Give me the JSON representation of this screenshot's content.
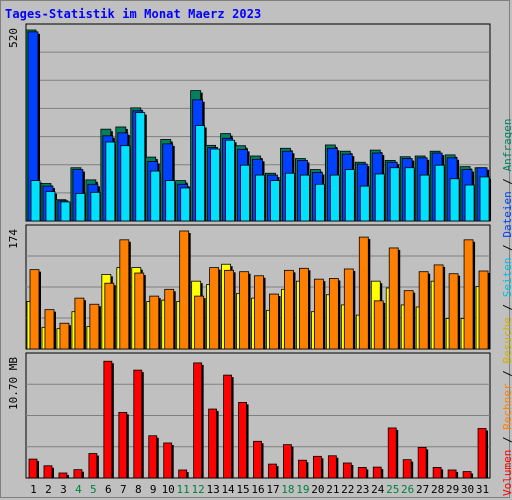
{
  "title": "Tages-Statistik im Monat Maerz 2023",
  "colors": {
    "title": "#0000ff",
    "background": "#c0c0c0",
    "plot_background": "#c0c0c0",
    "grid": "#808080",
    "anfragen": "#008060",
    "dateien": "#0040ff",
    "seiten": "#00e0ff",
    "besuche": "#ffff00",
    "rechner": "#ff8000",
    "volumen": "#ff0000",
    "weekend_label": "#008040",
    "weekday_label": "#000000"
  },
  "legend": {
    "top": [
      {
        "text": "Anfragen",
        "color": "#008060"
      },
      {
        "text": " / ",
        "color": "#000000"
      },
      {
        "text": "Dateien",
        "color": "#0040ff"
      },
      {
        "text": " / ",
        "color": "#000000"
      },
      {
        "text": "Seiten",
        "color": "#00c0e0"
      },
      {
        "text": " / ",
        "color": "#000000"
      },
      {
        "text": "Besuche",
        "color": "#d0b000"
      },
      {
        "text": " / ",
        "color": "#000000"
      },
      {
        "text": "Rechner",
        "color": "#ff8000"
      },
      {
        "text": " / ",
        "color": "#000000"
      },
      {
        "text": "Volumen",
        "color": "#ff0000"
      }
    ]
  },
  "chart_data": [
    {
      "type": "bar",
      "name": "Anfragen / Dateien / Seiten",
      "ymax_label": "520",
      "ylim": [
        0,
        520
      ],
      "categories": [
        "1",
        "2",
        "3",
        "4",
        "5",
        "6",
        "7",
        "8",
        "9",
        "10",
        "11",
        "12",
        "13",
        "14",
        "15",
        "16",
        "17",
        "18",
        "19",
        "20",
        "21",
        "22",
        "23",
        "24",
        "25",
        "26",
        "27",
        "28",
        "29",
        "30",
        "31"
      ],
      "weekend": [
        4,
        5,
        11,
        12,
        18,
        19,
        25,
        26
      ],
      "series": [
        {
          "name": "Anfragen",
          "values": [
            520,
            102,
            58,
            145,
            112,
            250,
            256,
            308,
            174,
            222,
            110,
            355,
            206,
            238,
            205,
            177,
            130,
            198,
            170,
            140,
            207,
            190,
            160,
            193,
            165,
            175,
            177,
            190,
            180,
            148,
            145
          ]
        },
        {
          "name": "Dateien",
          "values": [
            515,
            95,
            55,
            140,
            100,
            232,
            240,
            300,
            162,
            210,
            100,
            330,
            200,
            225,
            195,
            168,
            125,
            190,
            165,
            132,
            198,
            182,
            155,
            185,
            160,
            170,
            172,
            185,
            172,
            140,
            145
          ]
        },
        {
          "name": "Seiten",
          "values": [
            110,
            80,
            52,
            75,
            78,
            215,
            205,
            295,
            136,
            110,
            90,
            260,
            196,
            220,
            152,
            125,
            110,
            130,
            125,
            100,
            125,
            140,
            95,
            128,
            145,
            145,
            125,
            152,
            115,
            98,
            120
          ]
        }
      ]
    },
    {
      "type": "bar",
      "name": "Besuche / Rechner",
      "ymax_label": "174",
      "ylim": [
        0,
        174
      ],
      "categories": [
        "1",
        "2",
        "3",
        "4",
        "5",
        "6",
        "7",
        "8",
        "9",
        "10",
        "11",
        "12",
        "13",
        "14",
        "15",
        "16",
        "17",
        "18",
        "19",
        "20",
        "21",
        "22",
        "23",
        "24",
        "25",
        "26",
        "27",
        "28",
        "29",
        "30",
        "31"
      ],
      "series": [
        {
          "name": "Besuche",
          "values": [
            70,
            32,
            30,
            55,
            33,
            110,
            120,
            120,
            70,
            72,
            70,
            100,
            95,
            125,
            82,
            75,
            57,
            88,
            100,
            55,
            80,
            65,
            50,
            100,
            90,
            65,
            62,
            100,
            45,
            45,
            92
          ]
        },
        {
          "name": "Rechner",
          "values": [
            117,
            58,
            38,
            75,
            66,
            97,
            161,
            112,
            78,
            88,
            174,
            78,
            120,
            116,
            114,
            108,
            81,
            116,
            119,
            103,
            104,
            118,
            165,
            71,
            149,
            86,
            114,
            124,
            111,
            161,
            115
          ]
        }
      ]
    },
    {
      "type": "bar",
      "name": "Volumen",
      "ymax_label": "10.70 MB",
      "ylim": [
        0,
        10.7
      ],
      "categories": [
        "1",
        "2",
        "3",
        "4",
        "5",
        "6",
        "7",
        "8",
        "9",
        "10",
        "11",
        "12",
        "13",
        "14",
        "15",
        "16",
        "17",
        "18",
        "19",
        "20",
        "21",
        "22",
        "23",
        "24",
        "25",
        "26",
        "27",
        "28",
        "29",
        "30",
        "31"
      ],
      "series": [
        {
          "name": "Volumen",
          "values": [
            1.7,
            1.1,
            0.45,
            0.75,
            2.2,
            10.5,
            5.9,
            9.7,
            3.8,
            3.15,
            0.72,
            10.35,
            6.2,
            9.25,
            6.8,
            3.3,
            1.25,
            3.0,
            1.6,
            1.95,
            2.0,
            1.35,
            0.95,
            0.98,
            4.5,
            1.65,
            2.75,
            0.95,
            0.72,
            0.58,
            4.45
          ]
        }
      ]
    }
  ]
}
